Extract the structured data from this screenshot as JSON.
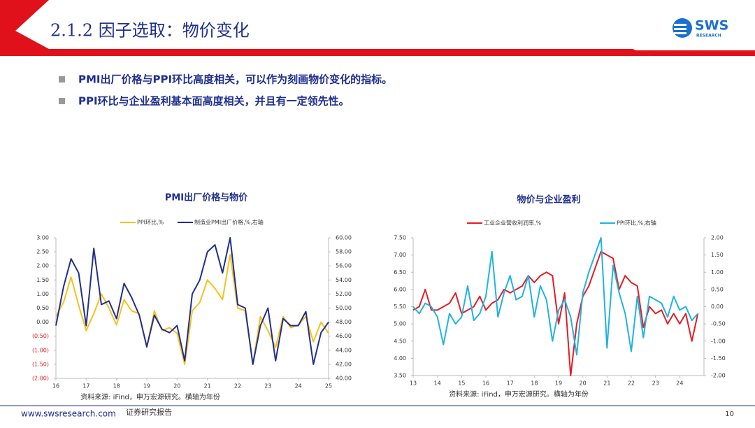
{
  "header": {
    "title": "2.1.2 因子选取：物价变化"
  },
  "logo": {
    "name": "SWS",
    "sub": "RESEARCH"
  },
  "bullets": [
    "PMI出厂价格与PPI环比高度相关，可以作为刻画物价变化的指标。",
    "PPI环比与企业盈利基本面高度相关，并且有一定领先性。"
  ],
  "footer": {
    "url": "www.swsresearch.com",
    "label": "证券研究报告",
    "page": "10"
  },
  "chart_data": [
    {
      "type": "line",
      "title": "PMI出厂价格与物价",
      "source": "资料来源: iFind，申万宏源研究。横轴为年份",
      "x": [
        16,
        16.25,
        16.5,
        16.75,
        17,
        17.25,
        17.5,
        17.75,
        18,
        18.25,
        18.5,
        18.75,
        19,
        19.25,
        19.5,
        19.75,
        20,
        20.25,
        20.5,
        20.75,
        21,
        21.25,
        21.5,
        21.75,
        22,
        22.25,
        22.5,
        22.75,
        23,
        23.25,
        23.5,
        23.75,
        24,
        24.25,
        24.5,
        24.75,
        25
      ],
      "series": [
        {
          "name": "PPI环比,%",
          "color": "#f5c21b",
          "values": [
            0.2,
            0.7,
            1.6,
            0.6,
            -0.3,
            0.3,
            1.0,
            0.5,
            -0.1,
            0.8,
            0.4,
            0.3,
            -0.9,
            0.4,
            -0.3,
            -0.2,
            -0.4,
            -1.5,
            0.4,
            0.7,
            1.5,
            1.2,
            0.8,
            2.4,
            0.5,
            0.4,
            -1.5,
            0.2,
            -0.3,
            -0.9,
            0.2,
            -0.2,
            -0.1,
            0.2,
            -0.7,
            0,
            -0.4
          ]
        },
        {
          "name": "制造业PMI出厂价格,%,右轴",
          "color": "#1f2f8f",
          "axis": "y2",
          "values": [
            47.5,
            53,
            57,
            55,
            47.5,
            58.5,
            50.5,
            51,
            48.5,
            53.5,
            51.5,
            49,
            44.5,
            49,
            47,
            46.5,
            47.5,
            42.5,
            52,
            54,
            58,
            59,
            55,
            60,
            50.5,
            50,
            42,
            47.5,
            50,
            42.5,
            48.5,
            47.5,
            47.5,
            49.5,
            42,
            46.5,
            48
          ]
        }
      ],
      "xlim": [
        16,
        25
      ],
      "xticks": [
        16,
        17,
        18,
        19,
        20,
        21,
        22,
        23,
        24,
        25
      ],
      "ylim": [
        -2,
        3
      ],
      "yticks": [
        {
          "value": -2,
          "label": "(2.00)"
        },
        {
          "value": -1.5,
          "label": "(1.50)"
        },
        {
          "value": -1,
          "label": "(1.00)"
        },
        {
          "value": -0.5,
          "label": "(0.50)"
        },
        {
          "value": 0,
          "label": "0.00"
        },
        {
          "value": 0.5,
          "label": "0.50"
        },
        {
          "value": 1,
          "label": "1.00"
        },
        {
          "value": 1.5,
          "label": "1.50"
        },
        {
          "value": 2,
          "label": "2.00"
        },
        {
          "value": 2.5,
          "label": "2.50"
        },
        {
          "value": 3,
          "label": "3.00"
        }
      ],
      "y2lim": [
        40,
        60
      ],
      "y2ticks": [
        {
          "value": 40,
          "label": "40.00"
        },
        {
          "value": 42,
          "label": "42.00"
        },
        {
          "value": 44,
          "label": "44.00"
        },
        {
          "value": 46,
          "label": "46.00"
        },
        {
          "value": 48,
          "label": "48.00"
        },
        {
          "value": 50,
          "label": "50.00"
        },
        {
          "value": 52,
          "label": "52.00"
        },
        {
          "value": 54,
          "label": "54.00"
        },
        {
          "value": 56,
          "label": "56.00"
        },
        {
          "value": 58,
          "label": "58.00"
        },
        {
          "value": 60,
          "label": "60.00"
        }
      ],
      "negative_label_color": "#e51c23"
    },
    {
      "type": "line",
      "title": "物价与企业盈利",
      "source": "资料来源: iFind，申万宏源研究。横轴为年份",
      "x": [
        13,
        13.25,
        13.5,
        13.75,
        14,
        14.25,
        14.5,
        14.75,
        15,
        15.25,
        15.5,
        15.75,
        16,
        16.25,
        16.5,
        16.75,
        17,
        17.25,
        17.5,
        17.75,
        18,
        18.25,
        18.5,
        18.75,
        19,
        19.25,
        19.5,
        19.75,
        20,
        20.25,
        20.5,
        20.75,
        21,
        21.25,
        21.5,
        21.75,
        22,
        22.25,
        22.5,
        22.75,
        23,
        23.25,
        23.5,
        23.75,
        24,
        24.25,
        24.5,
        24.75
      ],
      "series": [
        {
          "name": "工业企业营收利润率,%",
          "color": "#e51c23",
          "values": [
            5.4,
            5.5,
            6.0,
            5.4,
            5.4,
            5.5,
            5.6,
            5.9,
            5.3,
            5.4,
            5.5,
            5.8,
            5.4,
            5.6,
            5.7,
            6.0,
            5.9,
            6.0,
            6.1,
            6.4,
            6.2,
            6.4,
            6.5,
            6.4,
            5.0,
            5.9,
            3.5,
            5.0,
            5.8,
            6.1,
            6.6,
            7.1,
            7.0,
            6.9,
            6.0,
            6.4,
            6.2,
            6.1,
            4.9,
            5.5,
            5.3,
            5.4,
            5.0,
            5.3,
            5.0,
            5.3,
            4.5,
            5.3
          ]
        },
        {
          "name": "PPI环比,%,右轴",
          "color": "#1fb3e0",
          "axis": "y2",
          "values": [
            0,
            -0.2,
            0.1,
            0,
            -0.3,
            -1.1,
            -0.2,
            -0.5,
            -0.3,
            0.6,
            -0.4,
            -0.2,
            0.3,
            1.6,
            -0.3,
            0.4,
            0.9,
            0.2,
            0.3,
            0.9,
            -0.3,
            0.6,
            0.2,
            -1.0,
            -0.1,
            0.2,
            -0.3,
            -1.4,
            0.4,
            1.0,
            1.5,
            2.0,
            -1.2,
            1.2,
            0.4,
            -0.2,
            -1.3,
            0.3,
            -0.9,
            0.3,
            0.2,
            0.1,
            -0.3,
            0.3,
            -0.1,
            0,
            -0.4,
            -0.2
          ]
        }
      ],
      "xlim": [
        13,
        25
      ],
      "xticks": [
        13,
        14,
        15,
        16,
        17,
        18,
        19,
        20,
        21,
        22,
        23,
        24
      ],
      "ylim": [
        3.5,
        7.5
      ],
      "yticks": [
        {
          "value": 3.5,
          "label": "3.50"
        },
        {
          "value": 4,
          "label": "4.00"
        },
        {
          "value": 4.5,
          "label": "4.50"
        },
        {
          "value": 5,
          "label": "5.00"
        },
        {
          "value": 5.5,
          "label": "5.50"
        },
        {
          "value": 6,
          "label": "6.00"
        },
        {
          "value": 6.5,
          "label": "6.50"
        },
        {
          "value": 7,
          "label": "7.00"
        },
        {
          "value": 7.5,
          "label": "7.50"
        }
      ],
      "y2lim": [
        -2,
        2
      ],
      "y2ticks": [
        {
          "value": -2,
          "label": "-2.00"
        },
        {
          "value": -1.5,
          "label": "-1.50"
        },
        {
          "value": -1,
          "label": "-1.00"
        },
        {
          "value": -0.5,
          "label": "-0.50"
        },
        {
          "value": 0,
          "label": "0.00"
        },
        {
          "value": 0.5,
          "label": "0.50"
        },
        {
          "value": 1,
          "label": "1.00"
        },
        {
          "value": 1.5,
          "label": "1.50"
        },
        {
          "value": 2,
          "label": "2.00"
        }
      ]
    }
  ]
}
